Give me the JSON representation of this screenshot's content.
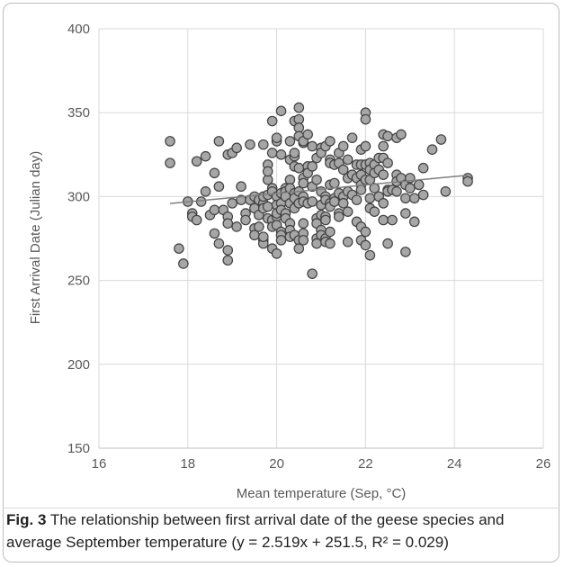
{
  "chart_data": {
    "type": "scatter",
    "xlabel": "Mean temperature (Sep, °C)",
    "ylabel": "First Arrival Date (Julian day)",
    "xlim": [
      16,
      26
    ],
    "ylim": [
      150,
      400
    ],
    "x_ticks": [
      "16",
      "18",
      "20",
      "22",
      "24",
      "26"
    ],
    "y_ticks": [
      "150",
      "200",
      "250",
      "300",
      "350",
      "400"
    ],
    "grid": "horizontal",
    "trendline": {
      "slope": 2.519,
      "intercept": 251.5,
      "x_range": [
        17.6,
        24.3
      ]
    },
    "point_color": "#a6a6a6",
    "point_stroke": "#404040",
    "trendline_color": "#7f7f7f",
    "points": [
      [
        17.6,
        333
      ],
      [
        17.6,
        320
      ],
      [
        17.8,
        269
      ],
      [
        17.9,
        260
      ],
      [
        18.0,
        297
      ],
      [
        18.1,
        290
      ],
      [
        18.1,
        288
      ],
      [
        18.2,
        321
      ],
      [
        18.2,
        286
      ],
      [
        18.3,
        297
      ],
      [
        18.4,
        303
      ],
      [
        18.4,
        324
      ],
      [
        18.5,
        289
      ],
      [
        18.6,
        278
      ],
      [
        18.6,
        292
      ],
      [
        18.6,
        314
      ],
      [
        18.7,
        333
      ],
      [
        18.7,
        306
      ],
      [
        18.7,
        272
      ],
      [
        18.8,
        292
      ],
      [
        18.9,
        288
      ],
      [
        18.9,
        284
      ],
      [
        18.9,
        262
      ],
      [
        18.9,
        268
      ],
      [
        18.9,
        325
      ],
      [
        19.0,
        296
      ],
      [
        19.0,
        326
      ],
      [
        19.1,
        282
      ],
      [
        19.1,
        329
      ],
      [
        19.2,
        298
      ],
      [
        19.2,
        306
      ],
      [
        19.3,
        290
      ],
      [
        19.3,
        286
      ],
      [
        19.4,
        331
      ],
      [
        19.4,
        298
      ],
      [
        19.5,
        293
      ],
      [
        19.5,
        281
      ],
      [
        19.5,
        277
      ],
      [
        19.5,
        300
      ],
      [
        19.6,
        298
      ],
      [
        19.6,
        289
      ],
      [
        19.6,
        282
      ],
      [
        19.7,
        296
      ],
      [
        19.7,
        300
      ],
      [
        19.7,
        293
      ],
      [
        19.7,
        274
      ],
      [
        19.7,
        272
      ],
      [
        19.7,
        276
      ],
      [
        19.7,
        331
      ],
      [
        19.8,
        319
      ],
      [
        19.8,
        310
      ],
      [
        19.8,
        301
      ],
      [
        19.8,
        287
      ],
      [
        19.8,
        294
      ],
      [
        19.8,
        315
      ],
      [
        19.9,
        305
      ],
      [
        19.9,
        303
      ],
      [
        19.9,
        286
      ],
      [
        19.9,
        282
      ],
      [
        19.9,
        269
      ],
      [
        19.9,
        326
      ],
      [
        19.9,
        345
      ],
      [
        20.0,
        333
      ],
      [
        20.0,
        335
      ],
      [
        20.0,
        300
      ],
      [
        20.0,
        295
      ],
      [
        20.0,
        288
      ],
      [
        20.0,
        290
      ],
      [
        20.0,
        283
      ],
      [
        20.0,
        266
      ],
      [
        20.1,
        351
      ],
      [
        20.1,
        325
      ],
      [
        20.1,
        302
      ],
      [
        20.1,
        296
      ],
      [
        20.1,
        292
      ],
      [
        20.1,
        279
      ],
      [
        20.1,
        277
      ],
      [
        20.1,
        274
      ],
      [
        20.2,
        300
      ],
      [
        20.2,
        305
      ],
      [
        20.2,
        303
      ],
      [
        20.2,
        300
      ],
      [
        20.2,
        290
      ],
      [
        20.2,
        287
      ],
      [
        20.3,
        333
      ],
      [
        20.3,
        310
      ],
      [
        20.3,
        322
      ],
      [
        20.3,
        305
      ],
      [
        20.3,
        296
      ],
      [
        20.3,
        284
      ],
      [
        20.3,
        280
      ],
      [
        20.3,
        276
      ],
      [
        20.4,
        345
      ],
      [
        20.4,
        324
      ],
      [
        20.4,
        326
      ],
      [
        20.4,
        318
      ],
      [
        20.4,
        302
      ],
      [
        20.4,
        299
      ],
      [
        20.4,
        293
      ],
      [
        20.4,
        277
      ],
      [
        20.5,
        353
      ],
      [
        20.5,
        346
      ],
      [
        20.5,
        341
      ],
      [
        20.5,
        336
      ],
      [
        20.5,
        317
      ],
      [
        20.5,
        303
      ],
      [
        20.5,
        296
      ],
      [
        20.5,
        274
      ],
      [
        20.5,
        269
      ],
      [
        20.6,
        332
      ],
      [
        20.6,
        333
      ],
      [
        20.6,
        311
      ],
      [
        20.6,
        308
      ],
      [
        20.6,
        300
      ],
      [
        20.6,
        297
      ],
      [
        20.6,
        284
      ],
      [
        20.6,
        278
      ],
      [
        20.6,
        274
      ],
      [
        20.7,
        337
      ],
      [
        20.7,
        318
      ],
      [
        20.7,
        314
      ],
      [
        20.7,
        296
      ],
      [
        20.8,
        330
      ],
      [
        20.8,
        318
      ],
      [
        20.8,
        306
      ],
      [
        20.8,
        297
      ],
      [
        20.8,
        254
      ],
      [
        20.9,
        323
      ],
      [
        20.9,
        310
      ],
      [
        20.9,
        287
      ],
      [
        20.9,
        284
      ],
      [
        20.9,
        275
      ],
      [
        20.9,
        272
      ],
      [
        21.0,
        329
      ],
      [
        21.0,
        326
      ],
      [
        21.0,
        303
      ],
      [
        21.0,
        295
      ],
      [
        21.0,
        289
      ],
      [
        21.0,
        280
      ],
      [
        21.0,
        277
      ],
      [
        21.1,
        330
      ],
      [
        21.1,
        300
      ],
      [
        21.1,
        298
      ],
      [
        21.1,
        288
      ],
      [
        21.1,
        286
      ],
      [
        21.1,
        275
      ],
      [
        21.1,
        273
      ],
      [
        21.2,
        333
      ],
      [
        21.2,
        322
      ],
      [
        21.2,
        320
      ],
      [
        21.2,
        307
      ],
      [
        21.2,
        296
      ],
      [
        21.2,
        294
      ],
      [
        21.2,
        279
      ],
      [
        21.2,
        272
      ],
      [
        21.3,
        319
      ],
      [
        21.3,
        308
      ],
      [
        21.3,
        299
      ],
      [
        21.3,
        297
      ],
      [
        21.4,
        326
      ],
      [
        21.4,
        320
      ],
      [
        21.4,
        302
      ],
      [
        21.4,
        290
      ],
      [
        21.4,
        288
      ],
      [
        21.5,
        330
      ],
      [
        21.5,
        316
      ],
      [
        21.5,
        300
      ],
      [
        21.5,
        296
      ],
      [
        21.6,
        322
      ],
      [
        21.6,
        311
      ],
      [
        21.6,
        303
      ],
      [
        21.6,
        291
      ],
      [
        21.6,
        273
      ],
      [
        21.7,
        335
      ],
      [
        21.7,
        313
      ],
      [
        21.7,
        301
      ],
      [
        21.8,
        319
      ],
      [
        21.8,
        311
      ],
      [
        21.8,
        298
      ],
      [
        21.8,
        285
      ],
      [
        21.9,
        328
      ],
      [
        21.9,
        319
      ],
      [
        21.9,
        313
      ],
      [
        21.9,
        307
      ],
      [
        21.9,
        304
      ],
      [
        21.9,
        282
      ],
      [
        21.9,
        274
      ],
      [
        22.0,
        350
      ],
      [
        22.0,
        346
      ],
      [
        22.0,
        330
      ],
      [
        22.0,
        319
      ],
      [
        22.0,
        310
      ],
      [
        22.0,
        279
      ],
      [
        22.0,
        271
      ],
      [
        22.1,
        320
      ],
      [
        22.1,
        316
      ],
      [
        22.1,
        310
      ],
      [
        22.1,
        299
      ],
      [
        22.1,
        293
      ],
      [
        22.1,
        265
      ],
      [
        22.2,
        319
      ],
      [
        22.2,
        314
      ],
      [
        22.2,
        305
      ],
      [
        22.2,
        291
      ],
      [
        22.3,
        323
      ],
      [
        22.3,
        316
      ],
      [
        22.3,
        300
      ],
      [
        22.4,
        337
      ],
      [
        22.4,
        330
      ],
      [
        22.4,
        323
      ],
      [
        22.4,
        313
      ],
      [
        22.4,
        296
      ],
      [
        22.4,
        286
      ],
      [
        22.5,
        336
      ],
      [
        22.5,
        320
      ],
      [
        22.5,
        304
      ],
      [
        22.5,
        303
      ],
      [
        22.5,
        272
      ],
      [
        22.6,
        304
      ],
      [
        22.6,
        286
      ],
      [
        22.7,
        313
      ],
      [
        22.7,
        309
      ],
      [
        22.7,
        303
      ],
      [
        22.7,
        335
      ],
      [
        22.8,
        337
      ],
      [
        22.8,
        311
      ],
      [
        22.9,
        307
      ],
      [
        22.9,
        299
      ],
      [
        22.9,
        290
      ],
      [
        22.9,
        267
      ],
      [
        23.0,
        311
      ],
      [
        23.0,
        305
      ],
      [
        23.1,
        299
      ],
      [
        23.1,
        285
      ],
      [
        23.2,
        307
      ],
      [
        23.3,
        317
      ],
      [
        23.3,
        301
      ],
      [
        23.5,
        328
      ],
      [
        23.7,
        334
      ],
      [
        23.8,
        303
      ],
      [
        24.3,
        311
      ],
      [
        24.3,
        309
      ]
    ]
  },
  "caption": {
    "label": "Fig. 3",
    "text": "The relationship between first arrival date of the geese species and average September temperature (y = 2.519x + 251.5, R² = 0.029)"
  }
}
